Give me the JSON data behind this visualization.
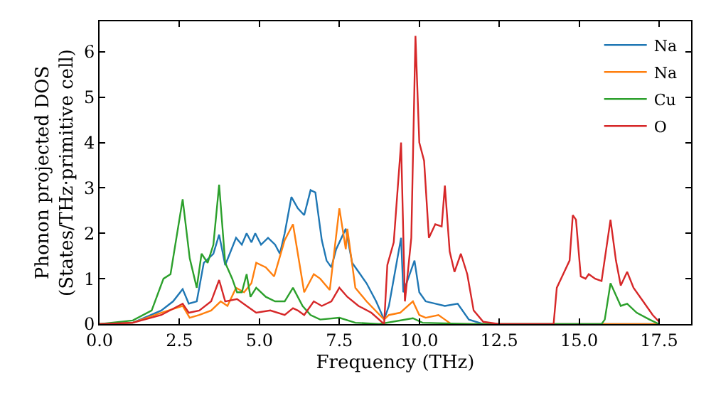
{
  "chart_data": {
    "type": "line",
    "xlabel": "Frequency (THz)",
    "ylabel": "Phonon projected DOS\n(States/THz·primitive cell)",
    "xlim": [
      0,
      18.5
    ],
    "ylim": [
      0,
      6.67
    ],
    "xticks": [
      {
        "value": 0,
        "label": "0.0"
      },
      {
        "value": 2.5,
        "label": "2.5"
      },
      {
        "value": 5,
        "label": "5.0"
      },
      {
        "value": 7.5,
        "label": "7.5"
      },
      {
        "value": 10,
        "label": "10.0"
      },
      {
        "value": 12.5,
        "label": "12.5"
      },
      {
        "value": 15,
        "label": "15.0"
      },
      {
        "value": 17.5,
        "label": "17.5"
      }
    ],
    "yticks": [
      0,
      1,
      2,
      3,
      4,
      5,
      6
    ],
    "grid": false,
    "legend": "top right",
    "marker": "none",
    "line_style": "solid",
    "series": [
      {
        "name": "Na",
        "color": "#1f77b4",
        "x": [
          0,
          1.04,
          1.93,
          2.3,
          2.6,
          2.79,
          3.04,
          3.26,
          3.56,
          3.74,
          3.93,
          4.27,
          4.45,
          4.6,
          4.75,
          4.87,
          5.05,
          5.27,
          5.49,
          5.64,
          5.79,
          6.0,
          6.2,
          6.4,
          6.6,
          6.75,
          6.95,
          7.1,
          7.25,
          7.4,
          7.7,
          7.9,
          8.35,
          8.65,
          8.9,
          9.05,
          9.43,
          9.5,
          9.85,
          10.0,
          10.2,
          10.8,
          11.2,
          11.55,
          12,
          17.5
        ],
        "values": [
          0,
          0.03,
          0.3,
          0.5,
          0.77,
          0.45,
          0.5,
          1.35,
          1.55,
          1.97,
          1.3,
          1.9,
          1.75,
          2.0,
          1.8,
          2.0,
          1.75,
          1.9,
          1.75,
          1.55,
          2.0,
          2.8,
          2.55,
          2.4,
          2.95,
          2.9,
          1.85,
          1.4,
          1.25,
          1.65,
          2.1,
          1.35,
          0.9,
          0.5,
          0.1,
          0.4,
          1.9,
          0.7,
          1.4,
          0.7,
          0.5,
          0.4,
          0.45,
          0.1,
          0,
          0
        ]
      },
      {
        "name": "Na",
        "color": "#ff7f0e",
        "x": [
          0,
          1.04,
          1.93,
          2.6,
          2.82,
          3.12,
          3.49,
          3.79,
          4.0,
          4.27,
          4.52,
          4.75,
          4.9,
          5.2,
          5.46,
          5.79,
          6.05,
          6.4,
          6.7,
          6.9,
          7.2,
          7.5,
          7.7,
          7.75,
          8.0,
          8.35,
          8.9,
          9.05,
          9.4,
          9.8,
          10.0,
          10.2,
          10.6,
          10.8,
          11.0,
          17.5
        ],
        "values": [
          0,
          0.03,
          0.25,
          0.4,
          0.14,
          0.2,
          0.3,
          0.5,
          0.4,
          0.8,
          0.7,
          0.9,
          1.35,
          1.25,
          1.05,
          1.85,
          2.2,
          0.7,
          1.1,
          1.0,
          0.75,
          2.55,
          1.65,
          2.1,
          0.8,
          0.5,
          0.1,
          0.2,
          0.25,
          0.5,
          0.2,
          0.14,
          0.2,
          0.1,
          0,
          0
        ]
      },
      {
        "name": "Cu",
        "color": "#2ca02c",
        "x": [
          0,
          1.04,
          1.63,
          2.0,
          2.22,
          2.6,
          2.82,
          3.04,
          3.19,
          3.38,
          3.56,
          3.74,
          3.93,
          4.15,
          4.3,
          4.45,
          4.6,
          4.72,
          4.9,
          5.2,
          5.49,
          5.79,
          6.05,
          6.35,
          6.6,
          6.9,
          7.5,
          8.0,
          8.75,
          9.8,
          10.1,
          11.7,
          15.7,
          15.8,
          15.98,
          16.3,
          16.5,
          16.8,
          17.2,
          17.5
        ],
        "values": [
          0,
          0.08,
          0.3,
          1.0,
          1.1,
          2.75,
          1.45,
          0.8,
          1.55,
          1.35,
          1.75,
          3.07,
          1.35,
          1.0,
          0.7,
          0.7,
          1.1,
          0.6,
          0.8,
          0.6,
          0.5,
          0.5,
          0.8,
          0.4,
          0.2,
          0.1,
          0.14,
          0.03,
          0,
          0.13,
          0.03,
          0,
          0,
          0.1,
          0.9,
          0.4,
          0.45,
          0.25,
          0.1,
          0
        ]
      },
      {
        "name": "O",
        "color": "#d62728",
        "x": [
          0,
          1.04,
          1.93,
          2.6,
          2.79,
          3.12,
          3.49,
          3.74,
          3.93,
          4.3,
          4.6,
          4.9,
          5.34,
          5.79,
          6.05,
          6.2,
          6.4,
          6.7,
          6.95,
          7.25,
          7.5,
          7.75,
          8.1,
          8.5,
          8.9,
          9.0,
          9.2,
          9.43,
          9.55,
          9.75,
          9.88,
          10.0,
          10.15,
          10.3,
          10.5,
          10.7,
          10.8,
          10.95,
          11.1,
          11.3,
          11.5,
          11.7,
          12.0,
          12.5,
          14.2,
          14.3,
          14.5,
          14.7,
          14.8,
          14.9,
          15.05,
          15.2,
          15.3,
          15.5,
          15.7,
          15.98,
          16.15,
          16.3,
          16.5,
          16.7,
          17.0,
          17.3,
          17.5
        ],
        "values": [
          0,
          0.03,
          0.2,
          0.45,
          0.25,
          0.3,
          0.5,
          0.97,
          0.5,
          0.55,
          0.4,
          0.25,
          0.3,
          0.2,
          0.35,
          0.3,
          0.2,
          0.5,
          0.4,
          0.5,
          0.8,
          0.6,
          0.4,
          0.25,
          0,
          1.3,
          1.8,
          4.0,
          0.5,
          1.9,
          6.35,
          4.0,
          3.6,
          1.9,
          2.2,
          2.15,
          3.05,
          1.6,
          1.15,
          1.55,
          1.1,
          0.3,
          0.05,
          0,
          0,
          0.8,
          1.1,
          1.4,
          2.4,
          2.3,
          1.05,
          1.0,
          1.1,
          1.0,
          0.95,
          2.3,
          1.4,
          0.85,
          1.15,
          0.8,
          0.5,
          0.2,
          0.05
        ]
      }
    ]
  }
}
